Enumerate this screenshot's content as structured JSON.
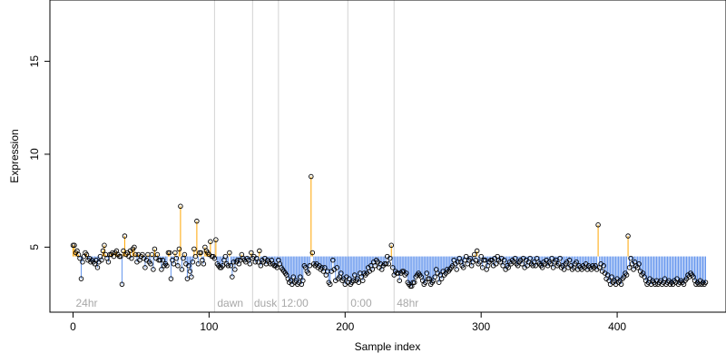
{
  "chart_data": {
    "type": "scatter",
    "title": "",
    "xlabel": "Sample index",
    "ylabel": "Expression",
    "xlim": [
      -17,
      480
    ],
    "ylim": [
      1.5,
      18.3
    ],
    "x_ticks": [
      0,
      100,
      200,
      300,
      400
    ],
    "y_ticks": [
      5,
      10,
      15
    ],
    "baseline": 4.5,
    "colors": {
      "above": "#ffa500",
      "below": "#6495ed",
      "divider": "#d3d3d3",
      "point": "#000000",
      "region_label": "#a8a8a8"
    },
    "dividers": [
      104,
      132,
      151,
      202,
      236
    ],
    "regions": [
      {
        "label": "24hr",
        "x": 2
      },
      {
        "label": "dawn",
        "x": 106
      },
      {
        "label": "dusk",
        "x": 133
      },
      {
        "label": "12:00",
        "x": 153
      },
      {
        "label": "0:00",
        "x": 204
      },
      {
        "label": "48hr",
        "x": 238
      }
    ],
    "series": [
      {
        "y": [
          5.1,
          5.1,
          4.7,
          4.8,
          4.6,
          4.4,
          3.3,
          4.2,
          4.5,
          4.7,
          4.6,
          4.3,
          4.4,
          4.2,
          4.3,
          4.2,
          4.1,
          4.3,
          3.9,
          4.2,
          4.5,
          4.3,
          4.8,
          5.1,
          4.6,
          4.4,
          4.2,
          4.6,
          4.6,
          4.7,
          4.5,
          4.7,
          4.8,
          4.6,
          4.5,
          4.5,
          3.0,
          4.8,
          5.6,
          4.6,
          4.7,
          4.5,
          4.8,
          4.4,
          4.9,
          5.0,
          4.6,
          4.2,
          4.6,
          4.3,
          4.5,
          4.6,
          4.4,
          3.9,
          4.3,
          4.6,
          4.2,
          4.1,
          4.6,
          3.8,
          4.9,
          4.4,
          4.6,
          4.3,
          4.3,
          3.8,
          4.3,
          4.0,
          4.1,
          4.0,
          4.7,
          4.7,
          3.3,
          4.3,
          4.1,
          4.7,
          4.4,
          4.0,
          4.9,
          7.2,
          3.8,
          4.4,
          4.6,
          4.1,
          3.3,
          4.0,
          3.7,
          3.4,
          4.2,
          4.9,
          4.5,
          6.4,
          4.1,
          4.7,
          4.7,
          4.3,
          4.1,
          5.0,
          4.8,
          4.7,
          4.6,
          5.3,
          4.5,
          4.5,
          4.4,
          5.4,
          4.1,
          4.0,
          3.9,
          3.9,
          4.0,
          4.3,
          4.5,
          4.1,
          4.0,
          4.7,
          4.0,
          3.4,
          4.2,
          3.8,
          4.2,
          4.3,
          4.1,
          4.3,
          4.6,
          4.4,
          4.3,
          4.2,
          4.4,
          4.3,
          4.1,
          4.7,
          4.4,
          4.5,
          4.2,
          4.4,
          4.2,
          4.8,
          4.0,
          4.3,
          4.2,
          4.4,
          4.1,
          4.3,
          4.2,
          4.1,
          4.3,
          4.1,
          4.0,
          4.0,
          3.9,
          4.3,
          4.1,
          3.9,
          3.8,
          3.7,
          3.6,
          3.5,
          3.3,
          3.1,
          3.2,
          3.0,
          3.4,
          3.1,
          3.2,
          3.0,
          3.1,
          3.4,
          3.0,
          3.2,
          4.0,
          3.9,
          3.7,
          3.6,
          4.0,
          8.8,
          4.7,
          4.1,
          4.0,
          4.1,
          3.9,
          4.0,
          3.8,
          3.9,
          3.7,
          3.9,
          3.5,
          3.7,
          3.1,
          3.0,
          3.7,
          4.3,
          3.8,
          3.2,
          3.9,
          3.3,
          3.4,
          3.6,
          3.2,
          3.3,
          3.0,
          3.4,
          3.1,
          3.3,
          3.0,
          3.1,
          3.2,
          3.5,
          3.2,
          3.3,
          3.1,
          3.6,
          3.4,
          3.2,
          3.6,
          3.5,
          3.6,
          3.9,
          3.7,
          4.0,
          3.8,
          4.2,
          4.0,
          4.3,
          4.2,
          3.9,
          4.1,
          3.8,
          4.0,
          4.1,
          4.1,
          4.5,
          4.1,
          4.4,
          5.1,
          3.9,
          3.5,
          3.7,
          3.6,
          3.6,
          3.2,
          3.6,
          3.7,
          3.7,
          3.5,
          3.6,
          3.1,
          3.0,
          2.9,
          2.9,
          3.1,
          3.1,
          3.4,
          3.5,
          3.6,
          3.5,
          3.4,
          3.2,
          3.0,
          3.1,
          3.6,
          3.3,
          3.3,
          3.0,
          3.1,
          3.2,
          3.4,
          3.8,
          3.6,
          3.1,
          3.5,
          3.3,
          3.7,
          3.5,
          3.6,
          3.8,
          3.7,
          3.8,
          3.9,
          4.0,
          4.3,
          4.1,
          3.8,
          4.2,
          4.4,
          4.2,
          4.0,
          3.9,
          4.3,
          4.5,
          4.1,
          4.3,
          4.4,
          4.0,
          4.2,
          4.6,
          4.3,
          4.8,
          4.1,
          4.2,
          4.5,
          3.9,
          4.3,
          4.3,
          3.8,
          4.0,
          4.2,
          4.3,
          4.3,
          4.0,
          4.4,
          4.1,
          4.5,
          4.3,
          4.2,
          4.4,
          4.0,
          4.3,
          3.8,
          4.0,
          3.9,
          4.2,
          4.1,
          4.3,
          4.2,
          4.4,
          4.1,
          4.0,
          4.2,
          4.3,
          4.1,
          4.4,
          3.9,
          4.3,
          4.0,
          4.2,
          4.4,
          4.1,
          4.0,
          4.2,
          4.0,
          4.4,
          4.2,
          4.1,
          4.0,
          3.9,
          4.2,
          4.1,
          4.3,
          4.0,
          4.2,
          4.1,
          4.4,
          3.9,
          4.2,
          4.3,
          4.0,
          4.1,
          4.4,
          3.9,
          4.0,
          3.8,
          4.1,
          4.2,
          3.9,
          4.3,
          4.0,
          3.8,
          3.9,
          4.1,
          4.2,
          3.8,
          4.0,
          3.9,
          3.8,
          4.0,
          3.9,
          4.1,
          3.8,
          4.0,
          3.9,
          3.8,
          4.0,
          3.9,
          4.0,
          3.8,
          6.2,
          3.9,
          4.1,
          3.7,
          4.0,
          3.6,
          3.3,
          3.5,
          3.2,
          3.0,
          3.4,
          3.1,
          3.2,
          3.0,
          3.3,
          3.1,
          3.2,
          3.0,
          3.3,
          3.4,
          3.6,
          3.5,
          5.6,
          3.9,
          4.4,
          4.1,
          3.8,
          4.2,
          4.0,
          3.9,
          4.1,
          3.7,
          3.5,
          3.6,
          3.4,
          3.2,
          3.0,
          3.1,
          3.3,
          3.0,
          3.2,
          3.1,
          3.0,
          3.2,
          3.0,
          3.1,
          3.2,
          3.0,
          3.1,
          3.3,
          3.0,
          3.1,
          3.2,
          3.0,
          3.1,
          3.0,
          3.2,
          3.1,
          3.3,
          3.0,
          3.1,
          3.2,
          3.1,
          3.0,
          3.2,
          3.3,
          3.5,
          3.4,
          3.6,
          3.5,
          3.4,
          3.2,
          3.0,
          3.1,
          3.0,
          3.2,
          3.0,
          3.1,
          3.0,
          3.1
        ]
      }
    ]
  }
}
